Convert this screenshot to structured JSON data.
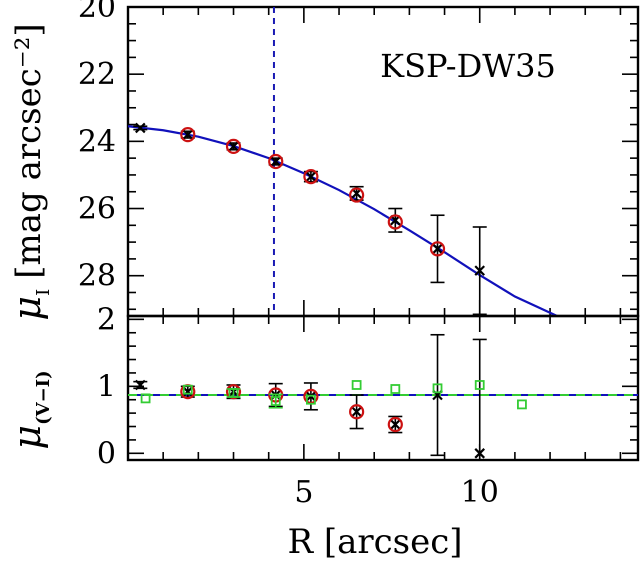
{
  "chart_data": [
    {
      "type": "scatter",
      "panel": "top",
      "annotation": "KSP-DW35",
      "ylabel": "μ",
      "ylabel_sub": "I",
      "ylabel_units": "[mag arcsec⁻²]",
      "xlim": [
        0,
        14.5
      ],
      "ylim": [
        29.2,
        20
      ],
      "y_inverted": true,
      "yticks": [
        20,
        22,
        24,
        26,
        28
      ],
      "ytick_labels": [
        "20",
        "22",
        "24",
        "26",
        "28"
      ],
      "grid": false,
      "reference_line": {
        "axis": "x",
        "value": 4.15,
        "style": "dashed",
        "color": "#1a1ab4"
      },
      "series": [
        {
          "marker": "cross",
          "color": "#000000",
          "x": [
            0.35,
            1.7,
            3.0,
            4.2,
            5.2,
            6.5,
            7.6,
            8.8,
            10.0
          ],
          "y": [
            23.6,
            23.8,
            24.15,
            24.6,
            25.05,
            25.55,
            26.35,
            27.2,
            27.85
          ],
          "yerr": [
            0.05,
            0.1,
            0.1,
            0.1,
            0.15,
            0.2,
            0.35,
            1.0,
            1.3
          ]
        },
        {
          "marker": "circle",
          "color": "#cc1111",
          "x": [
            1.7,
            3.0,
            4.2,
            5.2,
            6.5,
            7.6,
            8.8
          ],
          "y": [
            23.8,
            24.15,
            24.6,
            25.05,
            25.6,
            26.4,
            27.2
          ]
        }
      ],
      "fit_curve": {
        "color": "#1111bb",
        "x": [
          0,
          1,
          2,
          3,
          4,
          5,
          6,
          7,
          8,
          9,
          10,
          11,
          12.2
        ],
        "y": [
          23.55,
          23.67,
          23.86,
          24.14,
          24.5,
          24.95,
          25.45,
          26.02,
          26.65,
          27.3,
          27.98,
          28.62,
          29.2
        ]
      }
    },
    {
      "type": "scatter",
      "panel": "bottom",
      "xlabel": "R [arcsec]",
      "ylabel": "μ",
      "ylabel_sub": "(V−I)",
      "xlim": [
        0,
        14.5
      ],
      "ylim": [
        -0.1,
        2.05
      ],
      "xticks": [
        5,
        10
      ],
      "xtick_labels": [
        "5",
        "10"
      ],
      "yticks": [
        0,
        1,
        2
      ],
      "ytick_labels": [
        "0",
        "1",
        "2"
      ],
      "grid": false,
      "reference_lines": [
        {
          "axis": "y",
          "value": 0.87,
          "style": "solid",
          "color": "#1111bb"
        },
        {
          "axis": "y",
          "value": 0.87,
          "style": "dashed",
          "color": "#33cc33"
        }
      ],
      "series": [
        {
          "marker": "cross",
          "color": "#000000",
          "x": [
            0.35,
            1.7,
            3.0,
            4.2,
            5.2,
            6.5,
            7.6,
            8.8,
            10.0
          ],
          "y": [
            1.02,
            0.92,
            0.92,
            0.87,
            0.85,
            0.62,
            0.43,
            0.87,
            0.0
          ],
          "yerr": [
            0.05,
            0.08,
            0.1,
            0.17,
            0.2,
            0.25,
            0.12,
            0.9,
            1.7
          ]
        },
        {
          "marker": "circle",
          "color": "#cc1111",
          "x": [
            1.7,
            3.0,
            4.2,
            5.2,
            6.5,
            7.6
          ],
          "y": [
            0.92,
            0.92,
            0.87,
            0.85,
            0.62,
            0.43
          ]
        },
        {
          "marker": "square",
          "color": "#33cc33",
          "x": [
            0.5,
            1.7,
            3.0,
            4.2,
            5.2,
            6.5,
            7.6,
            8.8,
            10.0,
            11.2
          ],
          "y": [
            0.82,
            0.95,
            0.9,
            0.78,
            0.8,
            1.02,
            0.96,
            0.97,
            1.02,
            0.73
          ],
          "yerr": [
            0,
            0,
            0.06,
            0.1,
            0,
            0,
            0,
            0,
            0,
            0
          ]
        }
      ]
    }
  ]
}
